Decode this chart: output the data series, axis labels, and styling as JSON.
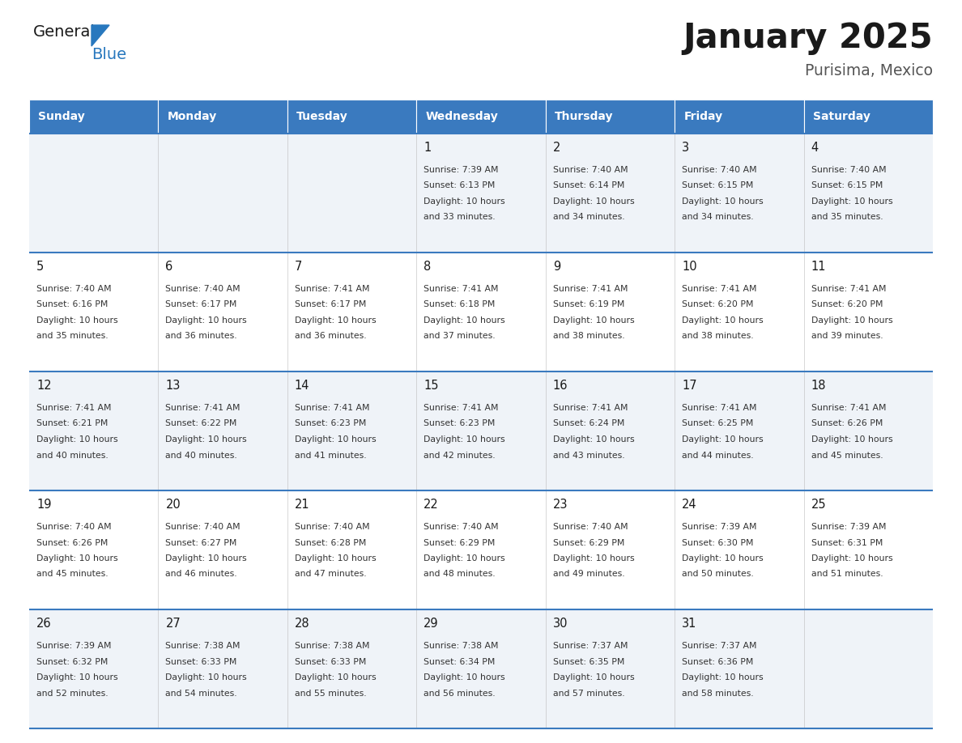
{
  "title": "January 2025",
  "subtitle": "Purisima, Mexico",
  "header_color": "#3a7abf",
  "header_text_color": "#ffffff",
  "days_of_week": [
    "Sunday",
    "Monday",
    "Tuesday",
    "Wednesday",
    "Thursday",
    "Friday",
    "Saturday"
  ],
  "calendar_data": [
    [
      {
        "day": "",
        "sunrise": "",
        "sunset": "",
        "daylight_hrs": "",
        "daylight_min": ""
      },
      {
        "day": "",
        "sunrise": "",
        "sunset": "",
        "daylight_hrs": "",
        "daylight_min": ""
      },
      {
        "day": "",
        "sunrise": "",
        "sunset": "",
        "daylight_hrs": "",
        "daylight_min": ""
      },
      {
        "day": "1",
        "sunrise": "7:39 AM",
        "sunset": "6:13 PM",
        "daylight_hrs": "10 hours",
        "daylight_min": "and 33 minutes."
      },
      {
        "day": "2",
        "sunrise": "7:40 AM",
        "sunset": "6:14 PM",
        "daylight_hrs": "10 hours",
        "daylight_min": "and 34 minutes."
      },
      {
        "day": "3",
        "sunrise": "7:40 AM",
        "sunset": "6:15 PM",
        "daylight_hrs": "10 hours",
        "daylight_min": "and 34 minutes."
      },
      {
        "day": "4",
        "sunrise": "7:40 AM",
        "sunset": "6:15 PM",
        "daylight_hrs": "10 hours",
        "daylight_min": "and 35 minutes."
      }
    ],
    [
      {
        "day": "5",
        "sunrise": "7:40 AM",
        "sunset": "6:16 PM",
        "daylight_hrs": "10 hours",
        "daylight_min": "and 35 minutes."
      },
      {
        "day": "6",
        "sunrise": "7:40 AM",
        "sunset": "6:17 PM",
        "daylight_hrs": "10 hours",
        "daylight_min": "and 36 minutes."
      },
      {
        "day": "7",
        "sunrise": "7:41 AM",
        "sunset": "6:17 PM",
        "daylight_hrs": "10 hours",
        "daylight_min": "and 36 minutes."
      },
      {
        "day": "8",
        "sunrise": "7:41 AM",
        "sunset": "6:18 PM",
        "daylight_hrs": "10 hours",
        "daylight_min": "and 37 minutes."
      },
      {
        "day": "9",
        "sunrise": "7:41 AM",
        "sunset": "6:19 PM",
        "daylight_hrs": "10 hours",
        "daylight_min": "and 38 minutes."
      },
      {
        "day": "10",
        "sunrise": "7:41 AM",
        "sunset": "6:20 PM",
        "daylight_hrs": "10 hours",
        "daylight_min": "and 38 minutes."
      },
      {
        "day": "11",
        "sunrise": "7:41 AM",
        "sunset": "6:20 PM",
        "daylight_hrs": "10 hours",
        "daylight_min": "and 39 minutes."
      }
    ],
    [
      {
        "day": "12",
        "sunrise": "7:41 AM",
        "sunset": "6:21 PM",
        "daylight_hrs": "10 hours",
        "daylight_min": "and 40 minutes."
      },
      {
        "day": "13",
        "sunrise": "7:41 AM",
        "sunset": "6:22 PM",
        "daylight_hrs": "10 hours",
        "daylight_min": "and 40 minutes."
      },
      {
        "day": "14",
        "sunrise": "7:41 AM",
        "sunset": "6:23 PM",
        "daylight_hrs": "10 hours",
        "daylight_min": "and 41 minutes."
      },
      {
        "day": "15",
        "sunrise": "7:41 AM",
        "sunset": "6:23 PM",
        "daylight_hrs": "10 hours",
        "daylight_min": "and 42 minutes."
      },
      {
        "day": "16",
        "sunrise": "7:41 AM",
        "sunset": "6:24 PM",
        "daylight_hrs": "10 hours",
        "daylight_min": "and 43 minutes."
      },
      {
        "day": "17",
        "sunrise": "7:41 AM",
        "sunset": "6:25 PM",
        "daylight_hrs": "10 hours",
        "daylight_min": "and 44 minutes."
      },
      {
        "day": "18",
        "sunrise": "7:41 AM",
        "sunset": "6:26 PM",
        "daylight_hrs": "10 hours",
        "daylight_min": "and 45 minutes."
      }
    ],
    [
      {
        "day": "19",
        "sunrise": "7:40 AM",
        "sunset": "6:26 PM",
        "daylight_hrs": "10 hours",
        "daylight_min": "and 45 minutes."
      },
      {
        "day": "20",
        "sunrise": "7:40 AM",
        "sunset": "6:27 PM",
        "daylight_hrs": "10 hours",
        "daylight_min": "and 46 minutes."
      },
      {
        "day": "21",
        "sunrise": "7:40 AM",
        "sunset": "6:28 PM",
        "daylight_hrs": "10 hours",
        "daylight_min": "and 47 minutes."
      },
      {
        "day": "22",
        "sunrise": "7:40 AM",
        "sunset": "6:29 PM",
        "daylight_hrs": "10 hours",
        "daylight_min": "and 48 minutes."
      },
      {
        "day": "23",
        "sunrise": "7:40 AM",
        "sunset": "6:29 PM",
        "daylight_hrs": "10 hours",
        "daylight_min": "and 49 minutes."
      },
      {
        "day": "24",
        "sunrise": "7:39 AM",
        "sunset": "6:30 PM",
        "daylight_hrs": "10 hours",
        "daylight_min": "and 50 minutes."
      },
      {
        "day": "25",
        "sunrise": "7:39 AM",
        "sunset": "6:31 PM",
        "daylight_hrs": "10 hours",
        "daylight_min": "and 51 minutes."
      }
    ],
    [
      {
        "day": "26",
        "sunrise": "7:39 AM",
        "sunset": "6:32 PM",
        "daylight_hrs": "10 hours",
        "daylight_min": "and 52 minutes."
      },
      {
        "day": "27",
        "sunrise": "7:38 AM",
        "sunset": "6:33 PM",
        "daylight_hrs": "10 hours",
        "daylight_min": "and 54 minutes."
      },
      {
        "day": "28",
        "sunrise": "7:38 AM",
        "sunset": "6:33 PM",
        "daylight_hrs": "10 hours",
        "daylight_min": "and 55 minutes."
      },
      {
        "day": "29",
        "sunrise": "7:38 AM",
        "sunset": "6:34 PM",
        "daylight_hrs": "10 hours",
        "daylight_min": "and 56 minutes."
      },
      {
        "day": "30",
        "sunrise": "7:37 AM",
        "sunset": "6:35 PM",
        "daylight_hrs": "10 hours",
        "daylight_min": "and 57 minutes."
      },
      {
        "day": "31",
        "sunrise": "7:37 AM",
        "sunset": "6:36 PM",
        "daylight_hrs": "10 hours",
        "daylight_min": "and 58 minutes."
      },
      {
        "day": "",
        "sunrise": "",
        "sunset": "",
        "daylight_hrs": "",
        "daylight_min": ""
      }
    ]
  ],
  "row_bg_colors": [
    "#eff3f8",
    "#ffffff"
  ],
  "day_number_color": "#1a1a1a",
  "text_color": "#333333",
  "line_color": "#3a7abf",
  "logo_general_color": "#1a1a1a",
  "logo_blue_color": "#2878be",
  "fig_width": 11.88,
  "fig_height": 9.18,
  "dpi": 100
}
